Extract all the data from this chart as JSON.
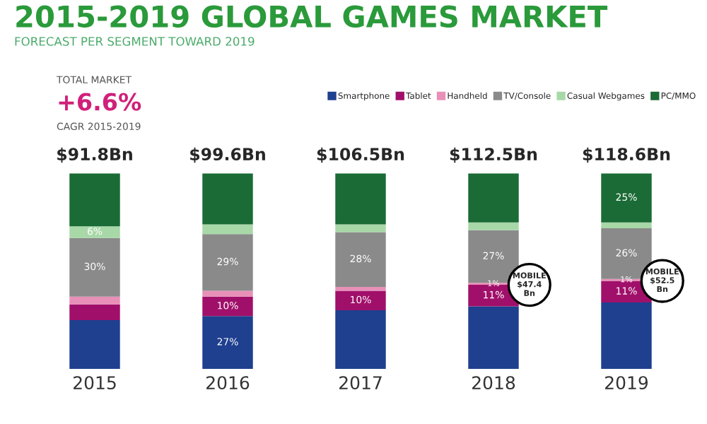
{
  "chart_data": {
    "type": "bar",
    "title": "2015-2019 GLOBAL GAMES MARKET",
    "subtitle": "FORECAST PER SEGMENT TOWARD 2019",
    "categories": [
      "2015",
      "2016",
      "2017",
      "2018",
      "2019"
    ],
    "stacked": true,
    "legend": "top right",
    "series": [
      {
        "name": "Smartphone",
        "color": "#1f3f8f",
        "values": [
          25,
          27,
          30,
          32,
          34
        ],
        "value_labels": [
          null,
          "27%",
          null,
          null,
          null
        ]
      },
      {
        "name": "Tablet",
        "color": "#a0106a",
        "values": [
          8,
          10,
          10,
          11,
          11
        ],
        "value_labels": [
          null,
          "10%",
          "10%",
          "11%",
          "11%"
        ]
      },
      {
        "name": "Handheld",
        "color": "#e890b8",
        "values": [
          4,
          3,
          2,
          1,
          1
        ],
        "value_labels": [
          null,
          null,
          null,
          "1%",
          "1%"
        ]
      },
      {
        "name": "TV/Console",
        "color": "#8a8a8a",
        "values": [
          30,
          29,
          28,
          27,
          26
        ],
        "value_labels": [
          "30%",
          "29%",
          "28%",
          "27%",
          "26%"
        ]
      },
      {
        "name": "Casual Webgames",
        "color": "#a8d8a8",
        "values": [
          6,
          5,
          4,
          4,
          3
        ],
        "value_labels": [
          "6%",
          null,
          null,
          null,
          null
        ]
      },
      {
        "name": "PC/MMO",
        "color": "#1a6b35",
        "values": [
          27,
          26,
          26,
          25,
          25
        ],
        "value_labels": [
          null,
          null,
          null,
          null,
          "25%"
        ]
      }
    ],
    "annotations": [
      "TOTAL MARKET",
      "+6.6%",
      "CAGR 2015-2019",
      {
        "text": "$91.8Bn",
        "x": "2015",
        "y": 100
      },
      {
        "text": "$99.6Bn",
        "x": "2016",
        "y": 100
      },
      {
        "text": "$106.5Bn",
        "x": "2017",
        "y": 100
      },
      {
        "text": "$112.5Bn",
        "x": "2018",
        "y": 100
      },
      {
        "text": "$118.6Bn",
        "x": "2019",
        "y": 100
      },
      {
        "text": "MOBILE\n$47.4\nBn",
        "x": "2018",
        "y": 43
      },
      {
        "text": "MOBILE\n$52.5\nBn",
        "x": "2019",
        "y": 45
      }
    ]
  }
}
